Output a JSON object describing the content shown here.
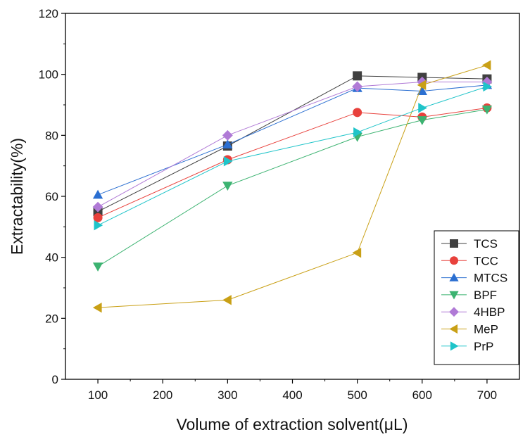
{
  "chart_data": {
    "type": "line",
    "xlabel": "Volume of extraction solvent(μL)",
    "ylabel": "Extractability(%)",
    "xlim": [
      50,
      750
    ],
    "ylim": [
      0,
      120
    ],
    "xticks": [
      100,
      200,
      300,
      400,
      500,
      600,
      700
    ],
    "yticks": [
      0,
      20,
      40,
      60,
      80,
      100,
      120
    ],
    "legend_position": "bottom-right",
    "grid": false,
    "x": [
      100,
      300,
      500,
      600,
      700
    ],
    "series": [
      {
        "name": "TCS",
        "color": "#404040",
        "marker": "square",
        "values": [
          55.0,
          76.5,
          99.5,
          99.0,
          98.5
        ]
      },
      {
        "name": "TCC",
        "color": "#e8413c",
        "marker": "circle",
        "values": [
          53.0,
          72.0,
          87.5,
          86.0,
          89.0
        ]
      },
      {
        "name": "MTCS",
        "color": "#2b6fd1",
        "marker": "triangle-up",
        "values": [
          60.5,
          77.0,
          95.5,
          94.5,
          96.5
        ]
      },
      {
        "name": "BPF",
        "color": "#3cb371",
        "marker": "triangle-down",
        "values": [
          37.0,
          63.5,
          79.5,
          85.0,
          88.5
        ]
      },
      {
        "name": "4HBP",
        "color": "#b07ad6",
        "marker": "diamond",
        "values": [
          56.5,
          80.0,
          96.0,
          97.5,
          97.5
        ]
      },
      {
        "name": "MeP",
        "color": "#c9a016",
        "marker": "triangle-left",
        "values": [
          23.5,
          26.0,
          41.5,
          96.5,
          103.0
        ]
      },
      {
        "name": "PrP",
        "color": "#1fc4c9",
        "marker": "triangle-right",
        "values": [
          50.5,
          71.5,
          81.0,
          89.0,
          96.0
        ]
      }
    ]
  }
}
